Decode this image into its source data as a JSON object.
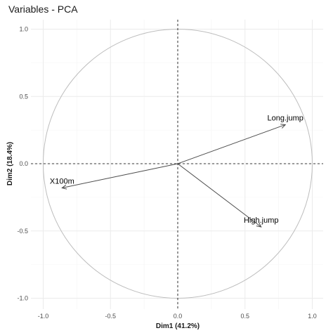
{
  "chart_data": {
    "type": "scatter",
    "subtype": "pca-correlation-circle",
    "title": "Variables - PCA",
    "xlabel": "Dim1 (41.2%)",
    "ylabel": "Dim2 (18.4%)",
    "xlim": [
      -1.0,
      1.0
    ],
    "ylim": [
      -1.0,
      1.0
    ],
    "xticks": [
      -1.0,
      -0.5,
      0.0,
      0.5,
      1.0
    ],
    "yticks": [
      -1.0,
      -0.5,
      0.0,
      0.5,
      1.0
    ],
    "xtick_labels": [
      "-1.0",
      "-0.5",
      "0.0",
      "0.5",
      "1.0"
    ],
    "ytick_labels": [
      "-1.0",
      "-0.5",
      "0.0",
      "0.5",
      "1.0"
    ],
    "grid": true,
    "circle_radius": 1.0,
    "variables": [
      {
        "name": "X100m",
        "x": -0.86,
        "y": -0.18
      },
      {
        "name": "Long.jump",
        "x": 0.8,
        "y": 0.29
      },
      {
        "name": "High.jump",
        "x": 0.62,
        "y": -0.47
      }
    ]
  },
  "colors": {
    "arrow": "#4d4d4d",
    "circle": "#bdbdbd",
    "grid_major": "#ebebeb",
    "grid_minor": "#f4f4f4",
    "zero_line": "#000000",
    "text": "#1a1a1a"
  }
}
